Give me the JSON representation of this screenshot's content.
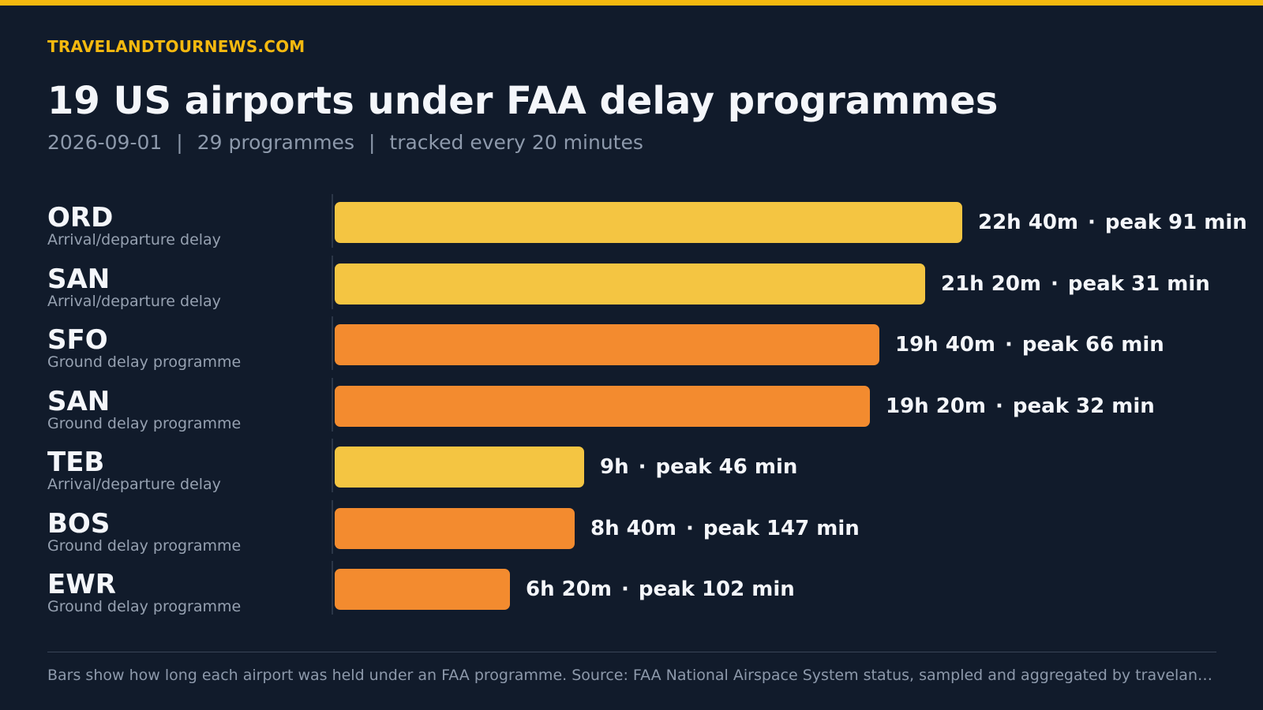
{
  "site": "TRAVELANDTOURNEWS.COM",
  "header": {
    "title": "19 US airports under FAA delay programmes",
    "date": "2026-09-01",
    "programmes": "29 programmes",
    "tracked": "tracked every 20 minutes",
    "separator": "|"
  },
  "colors": {
    "arrival_departure_delay": "#f4c542",
    "ground_delay_programme": "#f38b2f",
    "accent": "#f5b90f",
    "background": "#111b2b"
  },
  "chart_data": {
    "type": "bar",
    "orientation": "horizontal",
    "categories": [
      "ORD",
      "SAN",
      "SFO",
      "SAN",
      "TEB",
      "BOS",
      "EWR"
    ],
    "programme_types": [
      "Arrival/departure delay",
      "Arrival/departure delay",
      "Ground delay programme",
      "Ground delay programme",
      "Arrival/departure delay",
      "Ground delay programme",
      "Ground delay programme"
    ],
    "values_minutes": [
      1360,
      1280,
      1180,
      1160,
      540,
      520,
      380
    ],
    "duration_labels": [
      "22h 40m",
      "21h 20m",
      "19h 40m",
      "19h 20m",
      "9h",
      "8h 40m",
      "6h 20m"
    ],
    "peak_labels": [
      "peak 91 min",
      "peak 31 min",
      "peak 66 min",
      "peak 32 min",
      "peak 46 min",
      "peak 147 min",
      "peak 102 min"
    ],
    "value_separator": "·",
    "xlim": [
      0,
      1360
    ]
  },
  "footer": {
    "note": "Bars show how long each airport was held under an FAA programme. Source: FAA National Airspace System status, sampled and aggregated by travelandtournews.com"
  }
}
